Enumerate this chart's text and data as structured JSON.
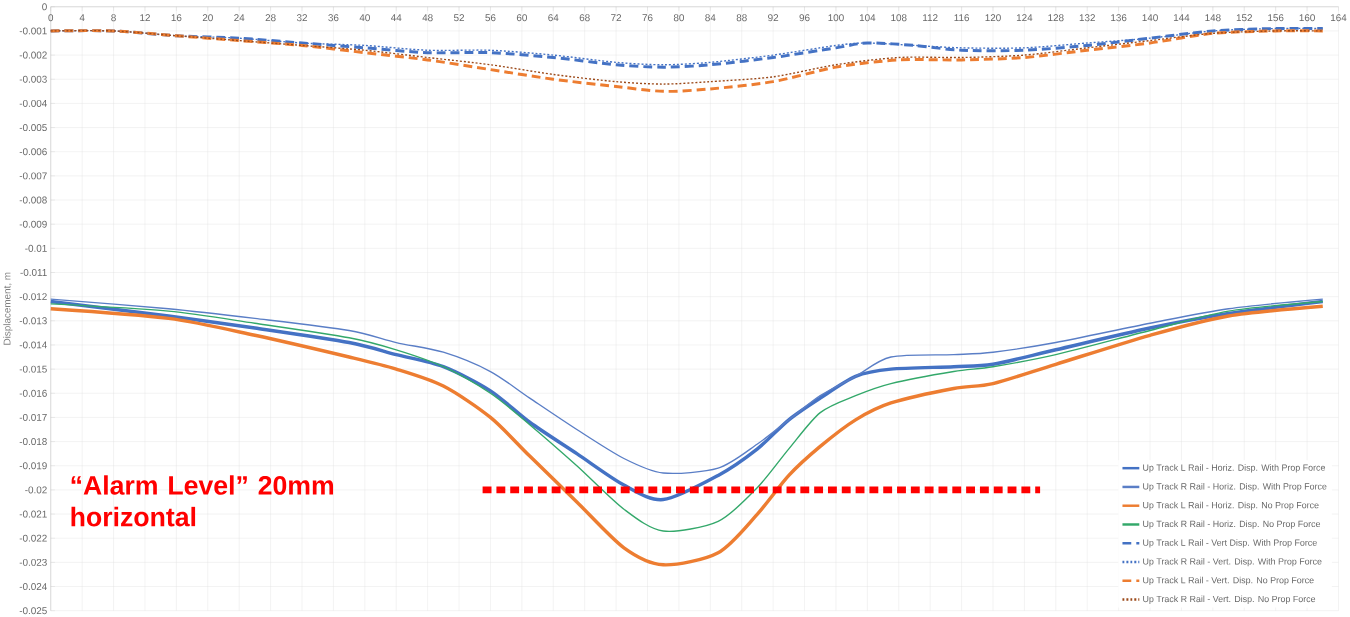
{
  "chart_data": {
    "type": "line",
    "ylabel": "Displacement, m",
    "xlim": [
      0,
      164
    ],
    "xticks": [
      0,
      4,
      8,
      12,
      16,
      20,
      24,
      28,
      32,
      36,
      40,
      44,
      48,
      52,
      56,
      60,
      64,
      68,
      72,
      76,
      80,
      84,
      88,
      92,
      96,
      100,
      104,
      108,
      112,
      116,
      120,
      124,
      128,
      132,
      136,
      140,
      144,
      148,
      152,
      156,
      160,
      164
    ],
    "ylim": [
      -0.025,
      0
    ],
    "yticks": [
      0,
      -0.001,
      -0.002,
      -0.003,
      -0.004,
      -0.005,
      -0.006,
      -0.007,
      -0.008,
      -0.009,
      -0.01,
      -0.011,
      -0.012,
      -0.013,
      -0.014,
      -0.015,
      -0.016,
      -0.017,
      -0.018,
      -0.019,
      -0.02,
      -0.021,
      -0.022,
      -0.023,
      -0.024,
      -0.025
    ],
    "grid": true,
    "legend": "bottom right",
    "annotations": [
      "“Alarm Level” 20mm horizontal"
    ],
    "series": [
      {
        "name": "Up Track L Rail - Horiz. Disp. With Prop Force",
        "color": "#4472c4",
        "line_style": "solid",
        "x": [
          0,
          15,
          26,
          38,
          44,
          50,
          56,
          61,
          67,
          73,
          78,
          85,
          90,
          94,
          98,
          102.5,
          107,
          115,
          120,
          128,
          140,
          150,
          162
        ],
        "values": [
          -0.0122,
          -0.0128,
          -0.0133,
          -0.0139,
          -0.0144,
          -0.0149,
          -0.0159,
          -0.0172,
          -0.0185,
          -0.0198,
          -0.0204,
          -0.0194,
          -0.0183,
          -0.0171,
          -0.0162,
          -0.0153,
          -0.015,
          -0.0149,
          -0.0148,
          -0.0142,
          -0.0133,
          -0.0127,
          -0.0122
        ]
      },
      {
        "name": "Up Track R Rail - Horiz. Disp. With Prop Force",
        "color": "#5a7ec6",
        "line_style": "solid",
        "x": [
          0,
          15,
          26,
          38,
          44,
          50,
          56,
          61,
          67,
          73,
          78,
          85,
          90,
          94,
          98,
          102.5,
          107,
          115,
          120,
          128,
          140,
          150,
          162
        ],
        "values": [
          -0.0121,
          -0.0125,
          -0.0129,
          -0.0134,
          -0.0139,
          -0.0143,
          -0.0151,
          -0.0162,
          -0.0175,
          -0.0187,
          -0.0193,
          -0.0191,
          -0.0181,
          -0.0171,
          -0.0161,
          -0.0153,
          -0.0145,
          -0.0144,
          -0.0143,
          -0.0139,
          -0.0131,
          -0.0125,
          -0.0121
        ]
      },
      {
        "name": "Up Track L Rail - Horiz. Disp. No Prop Force",
        "color": "#ed7d31",
        "line_style": "solid",
        "x": [
          0,
          15,
          26,
          38,
          44,
          50,
          56,
          61,
          67,
          73,
          78,
          85,
          90,
          94,
          98,
          102.5,
          107,
          115,
          120,
          128,
          140,
          150,
          162
        ],
        "values": [
          -0.0125,
          -0.0129,
          -0.0136,
          -0.0145,
          -0.015,
          -0.0157,
          -0.017,
          -0.0186,
          -0.0205,
          -0.0224,
          -0.0231,
          -0.0226,
          -0.021,
          -0.0194,
          -0.0182,
          -0.0171,
          -0.0164,
          -0.0158,
          -0.0156,
          -0.0148,
          -0.0136,
          -0.0128,
          -0.0124
        ]
      },
      {
        "name": "Up Track R Rail - Horiz. Disp. No Prop Force",
        "color": "#33a86a",
        "line_style": "solid",
        "x": [
          0,
          15,
          26,
          38,
          44,
          50,
          56,
          61,
          67,
          73,
          78,
          85,
          90,
          94,
          98,
          102.5,
          107,
          115,
          120,
          128,
          140,
          150,
          162
        ],
        "values": [
          -0.0123,
          -0.0126,
          -0.0131,
          -0.0137,
          -0.0142,
          -0.0149,
          -0.016,
          -0.0173,
          -0.019,
          -0.0208,
          -0.0217,
          -0.0213,
          -0.0199,
          -0.0183,
          -0.0168,
          -0.0161,
          -0.0156,
          -0.0151,
          -0.0149,
          -0.0144,
          -0.0134,
          -0.0126,
          -0.0122
        ]
      },
      {
        "name": "Up Track L Rail - Vert Disp. With Prop Force",
        "color": "#4472c4",
        "line_style": "dashed",
        "x": [
          0,
          8,
          16,
          24,
          32,
          40,
          48,
          56,
          64,
          72,
          78,
          84,
          92,
          100,
          104,
          110,
          116,
          124,
          132,
          140,
          148,
          156,
          162
        ],
        "values": [
          -0.001,
          -0.001,
          -0.0012,
          -0.0013,
          -0.0015,
          -0.0017,
          -0.0019,
          -0.0019,
          -0.0021,
          -0.0024,
          -0.0025,
          -0.0024,
          -0.0021,
          -0.0017,
          -0.0015,
          -0.0016,
          -0.0018,
          -0.0018,
          -0.0016,
          -0.0013,
          -0.001,
          -0.0009,
          -0.0009
        ]
      },
      {
        "name": "Up Track R Rail - Vert. Disp. With Prop Force",
        "color": "#4472c4",
        "line_style": "dotted",
        "x": [
          0,
          8,
          16,
          24,
          32,
          40,
          48,
          56,
          64,
          72,
          78,
          84,
          92,
          100,
          104,
          110,
          116,
          124,
          132,
          140,
          148,
          156,
          162
        ],
        "values": [
          -0.001,
          -0.001,
          -0.0012,
          -0.0013,
          -0.0015,
          -0.0016,
          -0.0018,
          -0.0018,
          -0.002,
          -0.0023,
          -0.0024,
          -0.0023,
          -0.002,
          -0.0016,
          -0.0015,
          -0.0016,
          -0.0017,
          -0.0017,
          -0.0015,
          -0.0013,
          -0.001,
          -0.0009,
          -0.0009
        ]
      },
      {
        "name": "Up Track L Rail - Vert. Disp. No Prop Force",
        "color": "#ed7d31",
        "line_style": "dashed",
        "x": [
          0,
          8,
          16,
          24,
          32,
          40,
          48,
          56,
          64,
          72,
          78,
          84,
          92,
          100,
          108,
          116,
          124,
          132,
          140,
          148,
          156,
          162
        ],
        "values": [
          -0.001,
          -0.001,
          -0.0012,
          -0.0014,
          -0.0016,
          -0.0019,
          -0.0022,
          -0.0026,
          -0.003,
          -0.0033,
          -0.0035,
          -0.0034,
          -0.0031,
          -0.0025,
          -0.0022,
          -0.0022,
          -0.0021,
          -0.0018,
          -0.0015,
          -0.0011,
          -0.001,
          -0.001
        ]
      },
      {
        "name": "Up Track R Rail - Vert. Disp. No Prop Force",
        "color": "#9c4a1a",
        "line_style": "dotted",
        "x": [
          0,
          8,
          16,
          24,
          32,
          40,
          48,
          56,
          64,
          72,
          78,
          84,
          92,
          100,
          108,
          116,
          124,
          132,
          140,
          148,
          156,
          162
        ],
        "values": [
          -0.001,
          -0.001,
          -0.0012,
          -0.0014,
          -0.0016,
          -0.0018,
          -0.0021,
          -0.0024,
          -0.0028,
          -0.0031,
          -0.0032,
          -0.0031,
          -0.0029,
          -0.0024,
          -0.0021,
          -0.0021,
          -0.002,
          -0.0017,
          -0.0014,
          -0.0011,
          -0.001,
          -0.001
        ]
      },
      {
        "color": "#ff0000",
        "line_style": "dashed",
        "x": [
          55,
          126
        ],
        "values": [
          -0.02,
          -0.02
        ]
      }
    ]
  }
}
